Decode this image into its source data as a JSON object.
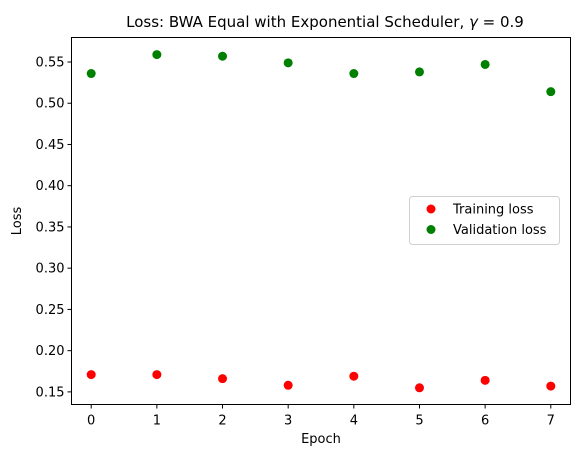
{
  "chart_data": {
    "type": "scatter",
    "title": "Loss: BWA Equal with Exponential Scheduler, γ = 0.9",
    "title_parts": {
      "prefix": "Loss: BWA Equal with Exponential Scheduler, ",
      "symbol": "γ",
      "suffix": " = 0.9"
    },
    "xlabel": "Epoch",
    "ylabel": "Loss",
    "xlim": [
      -0.3,
      7.3
    ],
    "ylim": [
      0.1347,
      0.5797
    ],
    "grid": false,
    "legend_position": "center-right",
    "x_ticks": [
      {
        "value": 0,
        "label": "0"
      },
      {
        "value": 1,
        "label": "1"
      },
      {
        "value": 2,
        "label": "2"
      },
      {
        "value": 3,
        "label": "3"
      },
      {
        "value": 4,
        "label": "4"
      },
      {
        "value": 5,
        "label": "5"
      },
      {
        "value": 6,
        "label": "6"
      },
      {
        "value": 7,
        "label": "7"
      }
    ],
    "y_ticks": [
      {
        "value": 0.15,
        "label": "0.15"
      },
      {
        "value": 0.2,
        "label": "0.20"
      },
      {
        "value": 0.25,
        "label": "0.25"
      },
      {
        "value": 0.3,
        "label": "0.30"
      },
      {
        "value": 0.35,
        "label": "0.35"
      },
      {
        "value": 0.4,
        "label": "0.40"
      },
      {
        "value": 0.45,
        "label": "0.45"
      },
      {
        "value": 0.5,
        "label": "0.50"
      },
      {
        "value": 0.55,
        "label": "0.55"
      }
    ],
    "series": [
      {
        "name": "Training loss",
        "color": "#ff0000",
        "x": [
          0,
          1,
          2,
          3,
          4,
          5,
          6,
          7
        ],
        "y": [
          0.171,
          0.171,
          0.166,
          0.158,
          0.169,
          0.155,
          0.164,
          0.157
        ]
      },
      {
        "name": "Validation loss",
        "color": "#008000",
        "x": [
          0,
          1,
          2,
          3,
          4,
          5,
          6,
          7
        ],
        "y": [
          0.536,
          0.559,
          0.557,
          0.549,
          0.536,
          0.538,
          0.547,
          0.514
        ]
      }
    ]
  }
}
